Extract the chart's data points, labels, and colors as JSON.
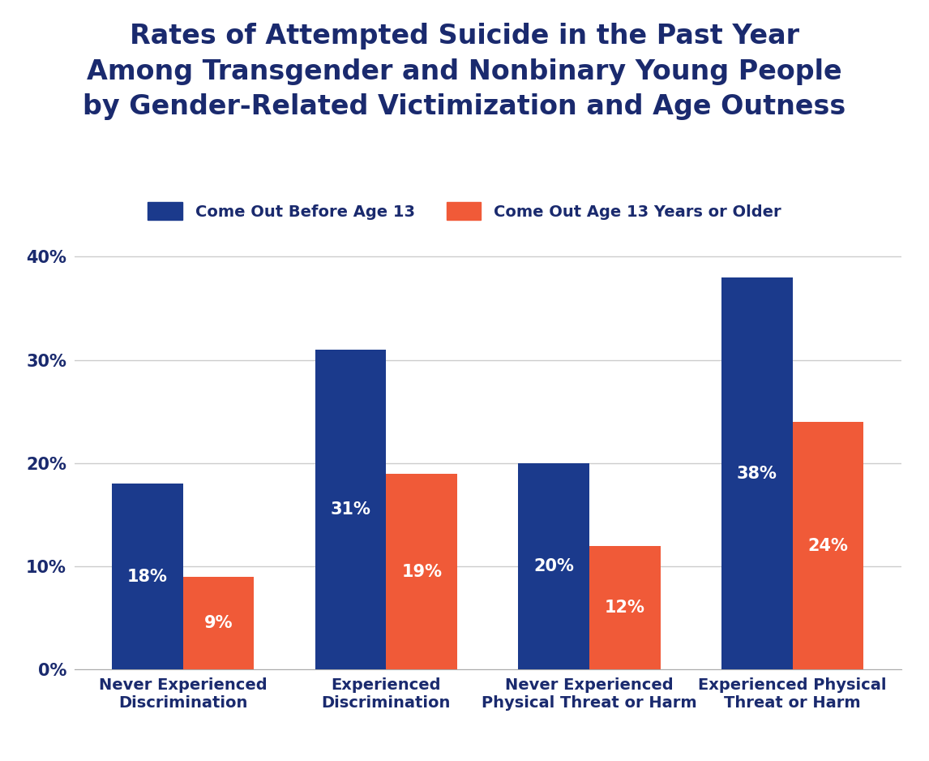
{
  "title": "Rates of Attempted Suicide in the Past Year\nAmong Transgender and Nonbinary Young People\nby Gender-Related Victimization and Age Outness",
  "categories": [
    "Never Experienced\nDiscrimination",
    "Experienced\nDiscrimination",
    "Never Experienced\nPhysical Threat or Harm",
    "Experienced Physical\nThreat or Harm"
  ],
  "series_blue": [
    18,
    31,
    20,
    38
  ],
  "series_orange": [
    9,
    19,
    12,
    24
  ],
  "blue_color": "#1b3a8c",
  "orange_color": "#f05a38",
  "title_color": "#1a2a6e",
  "axis_label_color": "#1a2a6e",
  "tick_label_color": "#1a2a6e",
  "legend_label_blue": "Come Out Before Age 13",
  "legend_label_orange": "Come Out Age 13 Years or Older",
  "ylim": [
    0,
    42
  ],
  "yticks": [
    0,
    10,
    20,
    30,
    40
  ],
  "ytick_labels": [
    "0%",
    "10%",
    "20%",
    "30%",
    "40%"
  ],
  "bar_width": 0.35,
  "grid_color": "#cccccc",
  "background_color": "#ffffff",
  "title_fontsize": 24,
  "axis_fontsize": 14,
  "tick_fontsize": 15,
  "legend_fontsize": 14,
  "bar_label_fontsize": 15
}
